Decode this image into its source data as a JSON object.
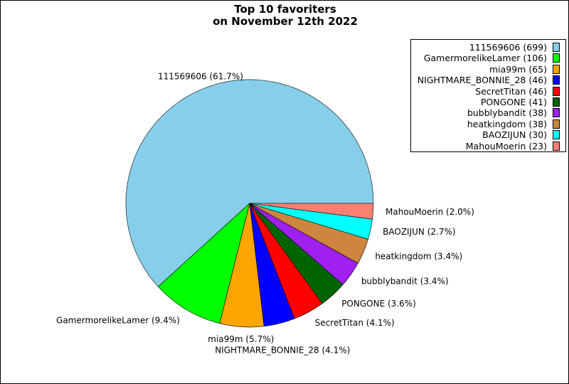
{
  "chart_data": {
    "type": "pie",
    "title": "Top 10 favoriters\non November 12th 2022",
    "title_lines": [
      "Top 10 favoriters",
      "on November 12th 2022"
    ],
    "start_angle": 0,
    "direction": "counterclockwise",
    "legend_placement": "top-right",
    "slices": [
      {
        "name": "111569606",
        "value": 699,
        "percent": "61.7%",
        "color": "#87ceeb"
      },
      {
        "name": "GamermorelikeLamer",
        "value": 106,
        "percent": "9.4%",
        "color": "#00ff00"
      },
      {
        "name": "mia99m",
        "value": 65,
        "percent": "5.7%",
        "color": "#ffa500"
      },
      {
        "name": "NIGHTMARE_BONNIE_28",
        "value": 46,
        "percent": "4.1%",
        "color": "#0000ff"
      },
      {
        "name": "SecretTitan",
        "value": 46,
        "percent": "4.1%",
        "color": "#ff0000"
      },
      {
        "name": "PONGONE",
        "value": 41,
        "percent": "3.6%",
        "color": "#006400"
      },
      {
        "name": "bubblybandit",
        "value": 38,
        "percent": "3.4%",
        "color": "#a020f0"
      },
      {
        "name": "heatkingdom",
        "value": 38,
        "percent": "3.4%",
        "color": "#cd853f"
      },
      {
        "name": "BAOZIJUN",
        "value": 30,
        "percent": "2.7%",
        "color": "#00ffff"
      },
      {
        "name": "MahouMoerin",
        "value": 23,
        "percent": "2.0%",
        "color": "#fa8072"
      }
    ]
  }
}
